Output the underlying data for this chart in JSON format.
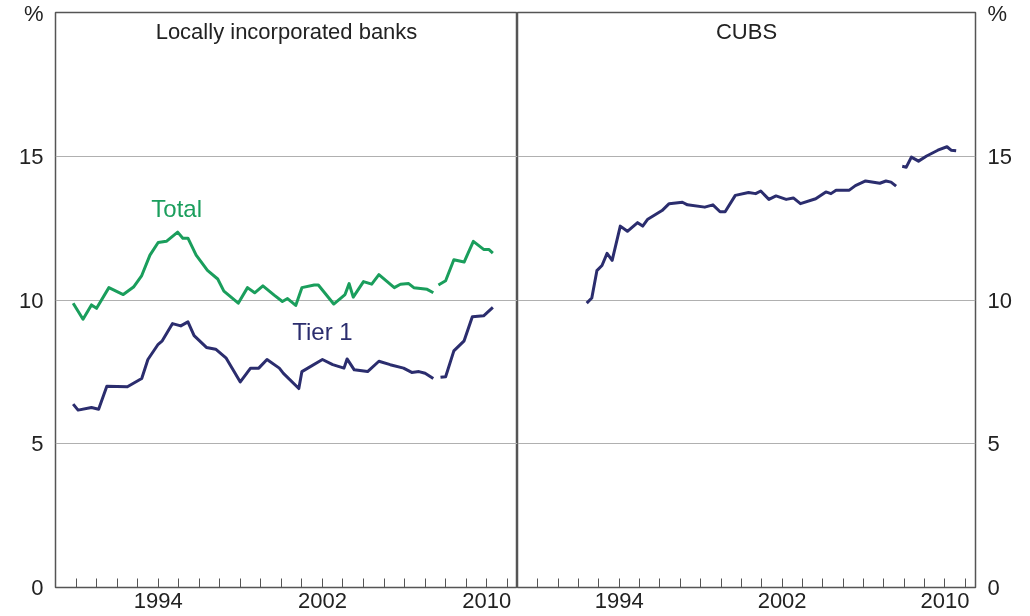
{
  "chart_data": [
    {
      "type": "line",
      "title": "Locally incorporated banks",
      "ylabel": "%",
      "xlim": [
        1989,
        2011.5
      ],
      "ylim": [
        0,
        20
      ],
      "yticks": [
        0,
        5,
        10,
        15
      ],
      "xticks": [
        {
          "value": 1990,
          "label": null
        },
        {
          "value": 1991,
          "label": null
        },
        {
          "value": 1992,
          "label": null
        },
        {
          "value": 1993,
          "label": null
        },
        1994,
        {
          "value": 1995,
          "label": null
        },
        {
          "value": 1996,
          "label": null
        },
        {
          "value": 1997,
          "label": null
        },
        {
          "value": 1998,
          "label": null
        },
        {
          "value": 1999,
          "label": null
        },
        {
          "value": 2000,
          "label": null
        },
        {
          "value": 2001,
          "label": null
        },
        2002,
        {
          "value": 2003,
          "label": null
        },
        {
          "value": 2004,
          "label": null
        },
        {
          "value": 2005,
          "label": null
        },
        {
          "value": 2006,
          "label": null
        },
        {
          "value": 2007,
          "label": null
        },
        {
          "value": 2008,
          "label": null
        },
        {
          "value": 2009,
          "label": null
        },
        2010,
        {
          "value": 2011,
          "label": null
        }
      ],
      "grid": "y",
      "series": [
        {
          "name": "Total",
          "color": "#1a9e5c",
          "x": [
            1989.86,
            1990.34,
            1990.75,
            1991.0,
            1991.6,
            1992.3,
            1992.8,
            1993.2,
            1993.6,
            1994.0,
            1994.4,
            1994.95,
            1995.2,
            1995.45,
            1995.85,
            1996.4,
            1996.9,
            1997.2,
            1997.9,
            1998.35,
            1998.7,
            1999.1,
            1999.65,
            2000.05,
            2000.3,
            2000.7,
            2001.0,
            2001.6,
            2001.8,
            2002.55,
            2003.1,
            2003.3,
            2003.5,
            2004.0,
            2004.4,
            2004.75,
            2005.5,
            2005.8,
            2006.2,
            2006.45,
            2007.1,
            2007.4,
            2007.5,
            2007.65,
            2008.0,
            2008.4,
            2008.9,
            2009.35,
            2009.85,
            2010.1,
            2010.3
          ],
          "values": [
            9.89,
            9.33,
            9.83,
            9.71,
            10.43,
            10.19,
            10.45,
            10.85,
            11.56,
            12.0,
            12.04,
            12.36,
            12.15,
            12.15,
            11.56,
            11.03,
            10.73,
            10.31,
            9.89,
            10.43,
            10.25,
            10.49,
            10.17,
            9.95,
            10.05,
            9.81,
            10.43,
            10.52,
            10.52,
            9.86,
            10.19,
            10.57,
            10.1,
            10.64,
            10.55,
            10.88,
            10.43,
            10.55,
            10.57,
            10.43,
            10.37,
            10.25,
            null,
            10.52,
            10.67,
            11.4,
            11.32,
            12.04,
            11.76,
            11.76,
            11.63
          ]
        },
        {
          "name": "Tier 1",
          "color": "#2b2d6e",
          "x": [
            1989.86,
            1990.1,
            1990.75,
            1991.1,
            1991.5,
            1992.5,
            1993.2,
            1993.5,
            1994.0,
            1994.2,
            1994.7,
            1995.1,
            1995.45,
            1995.75,
            1996.35,
            1996.8,
            1997.3,
            1998.0,
            1998.5,
            1998.9,
            1999.3,
            1999.9,
            2000.1,
            2000.85,
            2001.0,
            2002.0,
            2002.5,
            2003.05,
            2003.2,
            2003.55,
            2004.2,
            2004.75,
            2005.3,
            2005.95,
            2006.35,
            2006.7,
            2007.0,
            2007.4,
            2007.6,
            2007.75,
            2008.0,
            2008.4,
            2008.9,
            2009.3,
            2009.85,
            2010.3
          ],
          "values": [
            6.38,
            6.17,
            6.26,
            6.2,
            7.0,
            6.98,
            7.27,
            7.93,
            8.46,
            8.58,
            9.18,
            9.1,
            9.24,
            8.76,
            8.35,
            8.29,
            7.99,
            7.15,
            7.63,
            7.63,
            7.93,
            7.63,
            7.45,
            6.92,
            7.51,
            7.93,
            7.75,
            7.63,
            7.95,
            7.57,
            7.51,
            7.87,
            7.75,
            7.63,
            7.48,
            7.51,
            7.45,
            7.27,
            null,
            7.31,
            7.33,
            8.23,
            8.58,
            9.42,
            9.45,
            9.74
          ]
        }
      ]
    },
    {
      "type": "line",
      "title": "CUBS",
      "ylabel": "%",
      "xlim": [
        1989,
        2011.5
      ],
      "ylim": [
        0,
        20
      ],
      "yticks": [
        0,
        5,
        10,
        15
      ],
      "xticks": [
        {
          "value": 1990,
          "label": null
        },
        {
          "value": 1991,
          "label": null
        },
        {
          "value": 1992,
          "label": null
        },
        {
          "value": 1993,
          "label": null
        },
        1994,
        {
          "value": 1995,
          "label": null
        },
        {
          "value": 1996,
          "label": null
        },
        {
          "value": 1997,
          "label": null
        },
        {
          "value": 1998,
          "label": null
        },
        {
          "value": 1999,
          "label": null
        },
        {
          "value": 2000,
          "label": null
        },
        {
          "value": 2001,
          "label": null
        },
        2002,
        {
          "value": 2003,
          "label": null
        },
        {
          "value": 2004,
          "label": null
        },
        {
          "value": 2005,
          "label": null
        },
        {
          "value": 2006,
          "label": null
        },
        {
          "value": 2007,
          "label": null
        },
        {
          "value": 2008,
          "label": null
        },
        {
          "value": 2009,
          "label": null
        },
        2010,
        {
          "value": 2011,
          "label": null
        }
      ],
      "grid": "y",
      "series": [
        {
          "color": "#2b2d6e",
          "x": [
            1992.4,
            1992.65,
            1992.9,
            1993.15,
            1993.4,
            1993.65,
            1994.05,
            1994.4,
            1994.9,
            1995.15,
            1995.4,
            1996.1,
            1996.45,
            1997.1,
            1997.35,
            1998.2,
            1998.6,
            1998.95,
            1999.2,
            1999.7,
            2000.35,
            2000.7,
            2000.95,
            2001.35,
            2001.7,
            2002.2,
            2002.55,
            2002.9,
            2003.65,
            2004.15,
            2004.4,
            2004.65,
            2005.3,
            2005.6,
            2006.1,
            2006.8,
            2007.1,
            2007.35,
            2007.6,
            2007.75,
            2007.9,
            2008.1,
            2008.35,
            2008.7,
            2009.1,
            2009.65,
            2010.1,
            2010.3,
            2010.55
          ],
          "values": [
            9.89,
            10.07,
            11.02,
            11.2,
            11.62,
            11.38,
            12.57,
            12.39,
            12.69,
            12.57,
            12.81,
            13.11,
            13.35,
            13.4,
            13.31,
            13.23,
            13.31,
            13.07,
            13.07,
            13.64,
            13.74,
            13.7,
            13.79,
            13.5,
            13.62,
            13.5,
            13.55,
            13.35,
            13.52,
            13.76,
            13.7,
            13.82,
            13.82,
            13.98,
            14.14,
            14.06,
            14.14,
            14.1,
            13.96,
            null,
            14.65,
            14.62,
            14.97,
            14.83,
            15.01,
            15.21,
            15.33,
            15.21,
            15.19
          ]
        }
      ]
    }
  ]
}
